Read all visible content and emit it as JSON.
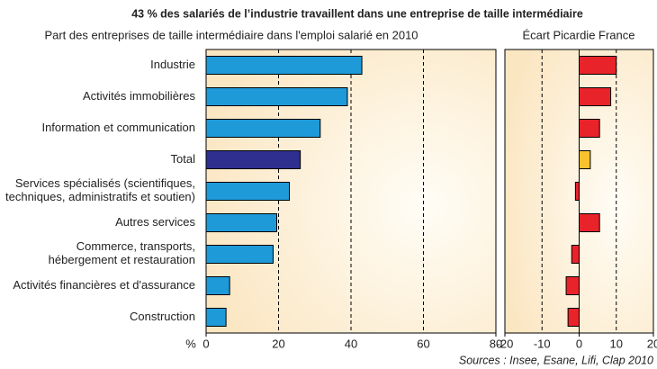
{
  "title": "43 % des salariés de l’industrie travaillent dans une entreprise de taille intermédiaire",
  "source": "Sources : Insee, Esane, Lifi, Clap 2010",
  "chart_data": [
    {
      "type": "bar",
      "orientation": "horizontal",
      "subtitle": "Part des entreprises de taille intermédiaire dans l'emploi salarié en 2010",
      "x_unit": "%",
      "categories": [
        "Industrie",
        "Activités immobilières",
        "Information et communication",
        "Total",
        "Services spécialisés (scientifiques,\ntechniques, administratifs et soutien)",
        "Autres services",
        "Commerce, transports,\nhébergement et restauration",
        "Activités financières et d'assurance",
        "Construction"
      ],
      "values": [
        43,
        39,
        31.5,
        26,
        23,
        19.5,
        18.5,
        6.5,
        5.5
      ],
      "colors": [
        "#1e9ad8",
        "#1e9ad8",
        "#1e9ad8",
        "#2e2f8f",
        "#1e9ad8",
        "#1e9ad8",
        "#1e9ad8",
        "#1e9ad8",
        "#1e9ad8"
      ],
      "xlim": [
        0,
        80
      ],
      "xticks": [
        0,
        20,
        40,
        60,
        80
      ],
      "grid": true
    },
    {
      "type": "bar",
      "orientation": "horizontal",
      "subtitle": "Écart Picardie France",
      "values": [
        10,
        8.5,
        5.5,
        3,
        -1,
        5.5,
        -2,
        -3.5,
        -3
      ],
      "colors": [
        "#e8232a",
        "#e8232a",
        "#e8232a",
        "#f9c22e",
        "#e8232a",
        "#e8232a",
        "#e8232a",
        "#e8232a",
        "#e8232a"
      ],
      "xlim": [
        -20,
        20
      ],
      "xticks": [
        -20,
        -10,
        0,
        10,
        20
      ],
      "grid": true
    }
  ]
}
